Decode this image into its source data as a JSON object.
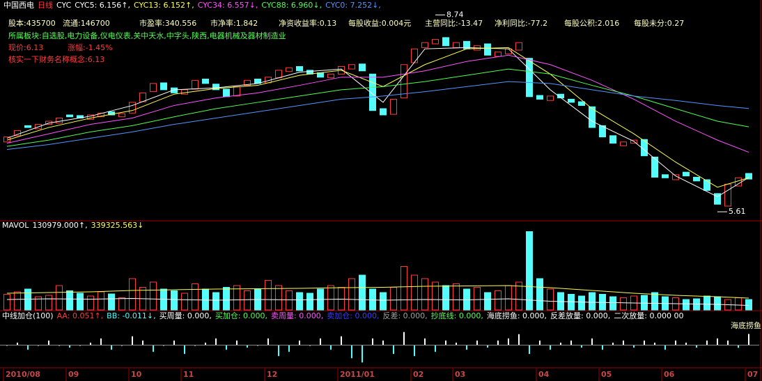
{
  "header": {
    "stock": "中国西电",
    "period": "日线",
    "indicator": "CYC"
  },
  "info": {
    "row": [
      "股本:435700",
      "流通:146700",
      "市盈率:340.556",
      "市净率:1.842",
      "净资收益率:0.13",
      "每股收益:0.004元",
      "主营同比:-13.47",
      "净利同比:-77.2",
      "每股公积:2.016",
      "每股未分:0.27"
    ],
    "sector": "所属板块:自选股,电力设备,仪电仪表,关中天水,中字头,陕西,电器机械及器材制造业",
    "price": "现价:6.13",
    "change": "涨幅:-1.45%",
    "concept": "核实一下财务名称概念:6.13"
  },
  "chart_data": [
    {
      "type": "candlestick",
      "categories": [
        "2010/08",
        null,
        null,
        null,
        null,
        null,
        "09",
        null,
        null,
        null,
        null,
        null,
        "10",
        null,
        null,
        null,
        null,
        "11",
        null,
        null,
        null,
        null,
        null,
        null,
        null,
        "12",
        null,
        null,
        null,
        null,
        null,
        null,
        "2011/01",
        null,
        null,
        null,
        null,
        null,
        null,
        "02",
        null,
        null,
        null,
        "03",
        null,
        null,
        null,
        null,
        null,
        null,
        null,
        "04",
        null,
        null,
        null,
        null,
        null,
        "05",
        null,
        null,
        null,
        null,
        null,
        "06",
        null,
        null,
        null,
        null,
        null,
        null,
        null,
        "07"
      ],
      "open": [
        6.72,
        6.82,
        6.98,
        6.93,
        7.0,
        7.02,
        7.15,
        7.14,
        7.08,
        7.12,
        7.2,
        7.12,
        7.18,
        7.36,
        7.52,
        7.66,
        7.58,
        7.48,
        7.56,
        7.72,
        7.64,
        7.56,
        7.45,
        7.62,
        7.72,
        7.66,
        7.74,
        7.84,
        7.92,
        7.86,
        7.82,
        7.74,
        7.8,
        7.88,
        7.96,
        7.8,
        7.25,
        7.16,
        7.42,
        7.98,
        8.22,
        8.28,
        8.38,
        8.22,
        8.32,
        8.18,
        8.28,
        8.08,
        8.12,
        8.18,
        8.05,
        7.46,
        7.38,
        7.48,
        7.4,
        7.36,
        7.28,
        6.98,
        6.82,
        6.66,
        6.7,
        6.76,
        6.48,
        6.2,
        6.12,
        6.24,
        6.16,
        6.12,
        5.9,
        5.7,
        6.02,
        6.22
      ],
      "close": [
        6.8,
        6.9,
        6.95,
        7.0,
        7.05,
        7.1,
        7.12,
        7.1,
        7.15,
        7.18,
        7.15,
        7.17,
        7.35,
        7.5,
        7.65,
        7.55,
        7.5,
        7.55,
        7.7,
        7.65,
        7.55,
        7.44,
        7.6,
        7.7,
        7.65,
        7.75,
        7.86,
        7.9,
        7.85,
        7.8,
        7.75,
        7.8,
        7.92,
        7.95,
        7.85,
        7.22,
        7.15,
        7.4,
        7.95,
        8.2,
        8.3,
        8.35,
        8.25,
        8.3,
        8.2,
        8.25,
        8.1,
        8.15,
        8.2,
        8.3,
        7.44,
        7.4,
        7.45,
        7.42,
        7.35,
        7.3,
        6.95,
        6.8,
        6.7,
        6.72,
        6.75,
        6.5,
        6.16,
        6.15,
        6.2,
        6.18,
        6.1,
        5.95,
        5.73,
        6.05,
        6.15,
        6.13
      ],
      "ylim": [
        5.5,
        8.8
      ],
      "up_color": "#ff3c3c",
      "down_color": "#54fcfc",
      "series": [
        {
          "name": "CYC5: 6.156↑,",
          "color": "#ffffff",
          "x": [
            0,
            4,
            8,
            12,
            16,
            20,
            24,
            28,
            32,
            36,
            40,
            44,
            48,
            52,
            56,
            60,
            64,
            68,
            71
          ],
          "values": [
            6.78,
            7.02,
            7.13,
            7.3,
            7.55,
            7.58,
            7.65,
            7.83,
            7.88,
            7.35,
            8.2,
            8.22,
            8.2,
            7.55,
            7.05,
            6.73,
            6.18,
            5.85,
            6.156
          ]
        },
        {
          "name": "CYC13: 6.152↑,",
          "color": "#ffff54",
          "x": [
            0,
            4,
            8,
            12,
            16,
            20,
            24,
            28,
            32,
            36,
            40,
            44,
            48,
            52,
            56,
            60,
            64,
            68,
            71
          ],
          "values": [
            6.75,
            6.95,
            7.1,
            7.22,
            7.48,
            7.57,
            7.62,
            7.78,
            7.86,
            7.6,
            7.95,
            8.2,
            8.22,
            7.8,
            7.25,
            6.85,
            6.4,
            6.0,
            6.152
          ]
        },
        {
          "name": "CYC34: 6.557↓,",
          "color": "#ff54ff",
          "x": [
            0,
            4,
            8,
            12,
            16,
            20,
            24,
            28,
            32,
            36,
            40,
            44,
            48,
            52,
            56,
            60,
            64,
            68,
            71
          ],
          "values": [
            6.7,
            6.85,
            7.0,
            7.1,
            7.3,
            7.42,
            7.5,
            7.62,
            7.75,
            7.75,
            7.85,
            8.0,
            8.1,
            7.95,
            7.7,
            7.4,
            7.05,
            6.75,
            6.557
          ]
        },
        {
          "name": "CYC88: 6.960↓,",
          "color": "#54fc54",
          "x": [
            0,
            4,
            8,
            12,
            16,
            20,
            24,
            28,
            32,
            36,
            40,
            44,
            48,
            52,
            56,
            60,
            64,
            68,
            71
          ],
          "values": [
            6.65,
            6.75,
            6.88,
            6.98,
            7.12,
            7.25,
            7.35,
            7.45,
            7.55,
            7.6,
            7.68,
            7.78,
            7.88,
            7.8,
            7.62,
            7.45,
            7.25,
            7.05,
            6.96
          ]
        },
        {
          "name": "CYC0: 7.252↓,",
          "color": "#5496ff",
          "x": [
            0,
            4,
            8,
            12,
            16,
            20,
            24,
            28,
            32,
            36,
            40,
            44,
            48,
            52,
            56,
            60,
            64,
            68,
            71
          ],
          "values": [
            6.6,
            6.68,
            6.78,
            6.88,
            7.0,
            7.1,
            7.2,
            7.3,
            7.4,
            7.45,
            7.52,
            7.6,
            7.68,
            7.65,
            7.55,
            7.45,
            7.38,
            7.3,
            7.252
          ]
        }
      ],
      "annotations": [
        {
          "label": "8.74",
          "value": 8.74
        },
        {
          "label": "5.61",
          "value": 5.61
        }
      ]
    },
    {
      "type": "bar",
      "title": "MAVOL",
      "values": [
        450000,
        520000,
        600000,
        380000,
        420000,
        700000,
        550000,
        480000,
        400000,
        520000,
        460000,
        350000,
        900000,
        650000,
        800000,
        600000,
        550000,
        480000,
        750000,
        600000,
        500000,
        650000,
        700000,
        550000,
        600000,
        850000,
        700000,
        550000,
        500000,
        480000,
        600000,
        700000,
        650000,
        900000,
        1000000,
        600000,
        500000,
        650000,
        1250000,
        1000000,
        900000,
        800000,
        700000,
        750000,
        600000,
        650000,
        500000,
        550000,
        700000,
        800000,
        2250000,
        900000,
        600000,
        500000,
        450000,
        400000,
        500000,
        450000,
        380000,
        350000,
        400000,
        420000,
        500000,
        380000,
        350000,
        300000,
        320000,
        400000,
        380000,
        300000,
        350000,
        300000
      ],
      "ylim": [
        0,
        2300000
      ],
      "series": [
        {
          "name": "130979.000↑,",
          "color": "#ffffff",
          "x": [
            0,
            4,
            8,
            12,
            16,
            20,
            24,
            28,
            32,
            36,
            40,
            44,
            48,
            52,
            56,
            60,
            64,
            68,
            71
          ],
          "values": [
            300000,
            320000,
            310000,
            330000,
            300000,
            280000,
            300000,
            290000,
            310000,
            280000,
            300000,
            290000,
            320000,
            250000,
            220000,
            200000,
            180000,
            160000,
            130979
          ]
        },
        {
          "name": "339325.563↓",
          "color": "#ffff54",
          "x": [
            0,
            4,
            8,
            12,
            16,
            20,
            24,
            28,
            32,
            36,
            40,
            44,
            48,
            52,
            56,
            60,
            64,
            68,
            71
          ],
          "values": [
            480000,
            500000,
            520000,
            560000,
            580000,
            600000,
            610000,
            620000,
            640000,
            650000,
            680000,
            690000,
            700000,
            640000,
            560000,
            480000,
            420000,
            380000,
            339325.563
          ]
        }
      ]
    },
    {
      "type": "bar",
      "title": "中线加仓(100)",
      "values": [
        0,
        0.01,
        -0.02,
        0,
        0.02,
        0,
        -0.01,
        0,
        0.01,
        0.03,
        -0.02,
        0,
        0.04,
        0.02,
        -0.03,
        0,
        0.02,
        -0.04,
        0,
        0.01,
        0.03,
        -0.02,
        0.02,
        -0.01,
        0,
        0.03,
        -0.05,
        -0.03,
        0.02,
        0,
        0.03,
        -0.02,
        0.04,
        -0.06,
        -0.08,
        0.03,
        0.02,
        -0.04,
        0.06,
        -0.05,
        0.03,
        -0.03,
        0.02,
        0.01,
        -0.02,
        0.02,
        -0.01,
        0.02,
        0.03,
        0.05,
        -0.04,
        0.02,
        -0.02,
        0.01,
        0.02,
        -0.01,
        0.03,
        -0.02,
        0.01,
        0.02,
        -0.01,
        0.02,
        0.01,
        -0.02,
        0.02,
        0.01,
        -0.01,
        0.02,
        0.03,
        0.02,
        -0.011,
        0.051
      ],
      "ylim": [
        -0.1,
        0.1
      ],
      "legend": [
        {
          "name": "AA: 0.051↑,",
          "color": "#ff3c3c"
        },
        {
          "name": "BB: -0.011↓,",
          "color": "#54fcfc"
        },
        {
          "name": "买周量: 0.000,",
          "color": "#ffffff"
        },
        {
          "name": "买加仓: 0.000,",
          "color": "#54fc54"
        },
        {
          "name": "卖周量: 0.000,",
          "color": "#ff54ff"
        },
        {
          "name": "卖加仓: 0.000,",
          "color": "#3c3cff"
        },
        {
          "name": "反差: 0.000,",
          "color": "#a0a0a0"
        },
        {
          "name": "抄底线: 0.000,",
          "color": "#54fc54"
        },
        {
          "name": "海底捞鱼: 0.000,",
          "color": "#ffffff"
        },
        {
          "name": "反差放量: 0.000,",
          "color": "#ffffff"
        },
        {
          "name": "二次放量: 0.000 00",
          "color": "#ffffff"
        }
      ],
      "tag": "海底捞鱼"
    }
  ]
}
